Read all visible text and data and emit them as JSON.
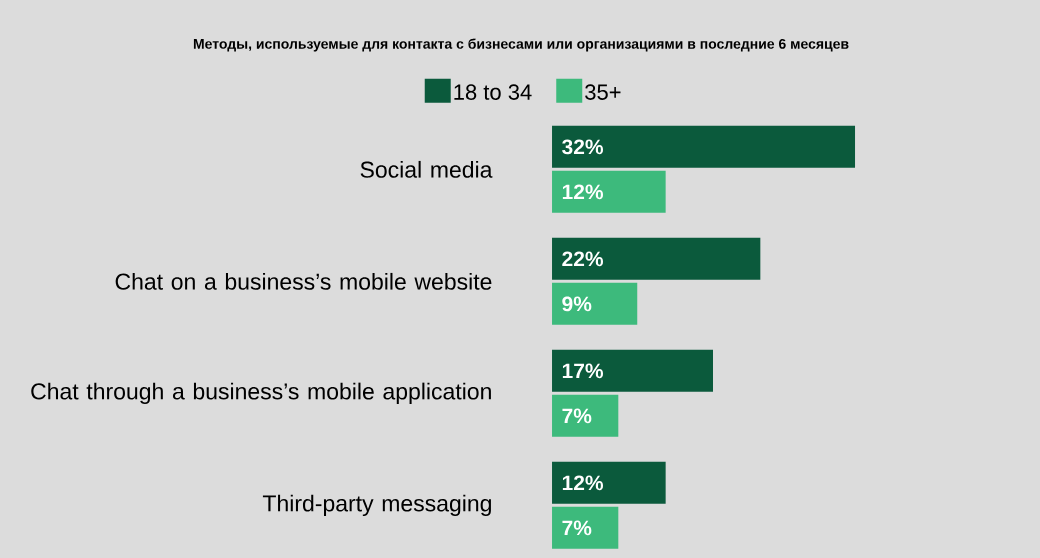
{
  "chart_data": {
    "type": "bar",
    "orientation": "horizontal",
    "title": "Методы, используемые для контакта с бизнесами или организациями в последние 6 месяцев",
    "categories": [
      "Social media",
      "Chat on a business’s mobile website",
      "Chat through a business’s mobile application",
      "Third-party messaging"
    ],
    "series": [
      {
        "name": "18 to 34",
        "color": "#0b5a3c",
        "values": [
          32,
          22,
          17,
          12
        ],
        "value_labels": [
          "32%",
          "22%",
          "17%",
          "12%"
        ]
      },
      {
        "name": "35+",
        "color": "#3dba7c",
        "values": [
          12,
          9,
          7,
          7
        ],
        "value_labels": [
          "12%",
          "9%",
          "7%",
          "7%"
        ]
      }
    ],
    "legend": "top"
  }
}
